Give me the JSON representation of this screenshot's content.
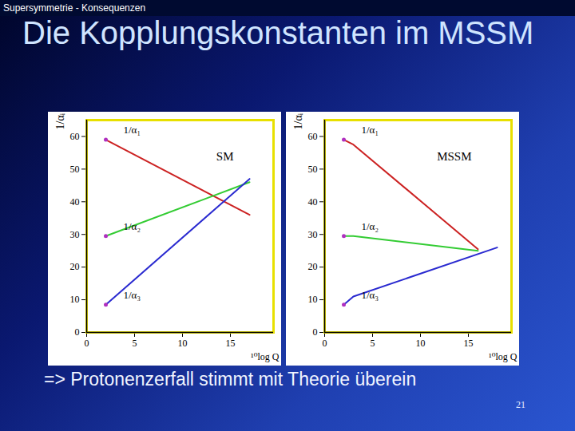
{
  "slide": {
    "header": "Supersymmetrie - Konsequenzen",
    "title": "Die Kopplungskonstanten im MSSM",
    "footer": "=> Protonenzerfall stimmt mit Theorie überein",
    "page": "21"
  },
  "chart_data": [
    {
      "type": "line",
      "title": "SM",
      "xlabel": "¹⁰log Q",
      "ylabel": "1/αᵢ",
      "xlim": [
        0,
        19.5
      ],
      "ylim": [
        0,
        65
      ],
      "xticks": [
        0,
        5,
        10,
        15
      ],
      "yticks": [
        0,
        10,
        20,
        30,
        40,
        50,
        60
      ],
      "series": [
        {
          "name": "1/α₁",
          "color": "#cc2222",
          "x": [
            2,
            17
          ],
          "values": [
            59,
            36
          ]
        },
        {
          "name": "1/α₂",
          "color": "#33cc33",
          "x": [
            2,
            17
          ],
          "values": [
            29.5,
            46
          ]
        },
        {
          "name": "1/α₃",
          "color": "#2a2ad0",
          "x": [
            2,
            17
          ],
          "values": [
            8.5,
            47
          ]
        }
      ]
    },
    {
      "type": "line",
      "title": "MSSM",
      "xlabel": "¹⁰log Q",
      "ylabel": "1/αᵢ",
      "xlim": [
        0,
        19.5
      ],
      "ylim": [
        0,
        65
      ],
      "xticks": [
        0,
        5,
        10,
        15
      ],
      "yticks": [
        0,
        10,
        20,
        30,
        40,
        50,
        60
      ],
      "series": [
        {
          "name": "1/α₁",
          "color": "#cc2222",
          "x": [
            2,
            3,
            16
          ],
          "values": [
            59,
            57.5,
            25.5
          ]
        },
        {
          "name": "1/α₂",
          "color": "#33cc33",
          "x": [
            2,
            3,
            16
          ],
          "values": [
            29.5,
            29.5,
            25
          ]
        },
        {
          "name": "1/α₃",
          "color": "#2a2ad0",
          "x": [
            2,
            3,
            18
          ],
          "values": [
            8.5,
            11,
            26
          ]
        }
      ]
    }
  ]
}
